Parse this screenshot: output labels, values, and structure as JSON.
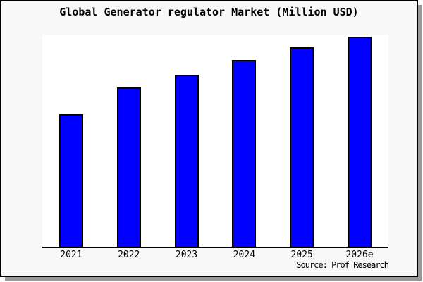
{
  "page": {
    "background": "#ffffff",
    "frame_background": "#f8f8f8",
    "frame_border_color": "#000000",
    "shadow_color": "#999999"
  },
  "header": {
    "title": "Global Generator regulator Market (Million USD)"
  },
  "footer": {
    "source": "Source: Prof Research"
  },
  "chart_data": {
    "type": "bar",
    "title": "Global Generator regulator Market (Million USD)",
    "categories": [
      "2021",
      "2022",
      "2023",
      "2024",
      "2025",
      "2026e"
    ],
    "values": [
      63,
      76,
      82,
      89,
      95,
      100
    ],
    "xlabel": "",
    "ylabel": "",
    "ylim": [
      0,
      101
    ],
    "grid": false,
    "legend": false,
    "y_axis_shown": false,
    "note": "No y-axis scale is shown in the image; values are relative bar heights with the tallest bar (2026e) = 100.",
    "bar_fill": "#0000ff",
    "bar_border": "#000000",
    "annotation": "Source: Prof Research"
  }
}
